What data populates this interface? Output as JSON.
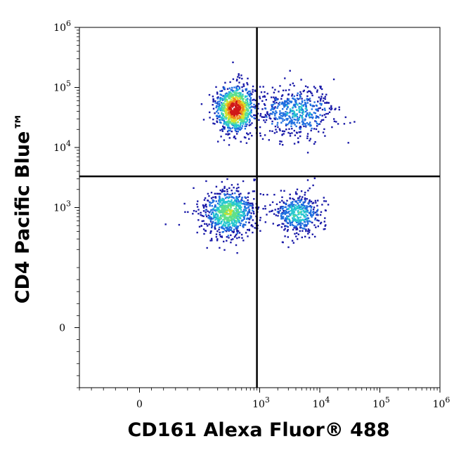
{
  "chart_data": {
    "type": "scatter",
    "subtype": "flow-cytometry-density-dot-plot",
    "title": "",
    "xlabel": "CD161 Alexa Fluor® 488",
    "ylabel": "CD4 Pacific Blue™",
    "x_scale": "biexponential",
    "y_scale": "biexponential",
    "xlim": [
      -100,
      1000000
    ],
    "ylim": [
      -100,
      1000000
    ],
    "x_ticks": [
      {
        "value": 0,
        "base": "0",
        "exp": ""
      },
      {
        "value": 1000,
        "base": "10",
        "exp": "3"
      },
      {
        "value": 10000,
        "base": "10",
        "exp": "4"
      },
      {
        "value": 100000,
        "base": "10",
        "exp": "5"
      },
      {
        "value": 1000000,
        "base": "10",
        "exp": "6"
      }
    ],
    "y_ticks": [
      {
        "value": 0,
        "base": "0",
        "exp": ""
      },
      {
        "value": 1000,
        "base": "10",
        "exp": "3"
      },
      {
        "value": 10000,
        "base": "10",
        "exp": "4"
      },
      {
        "value": 100000,
        "base": "10",
        "exp": "5"
      },
      {
        "value": 1000000,
        "base": "10",
        "exp": "6"
      }
    ],
    "quadrant_gates": {
      "x": 900,
      "y": 3300
    },
    "color_scale": [
      "#1a1aa8",
      "#1f6fe0",
      "#27c7d0",
      "#5fe08a",
      "#d8e22a",
      "#f08a1a",
      "#d01818"
    ],
    "populations": [
      {
        "quadrant": "upper-left",
        "center": [
          380,
          45000
        ],
        "spread_decades": [
          0.16,
          0.2
        ],
        "events": 900,
        "relative_density": 1.0
      },
      {
        "quadrant": "upper-right",
        "center": [
          4000,
          40000
        ],
        "spread_decades": [
          0.33,
          0.22
        ],
        "events": 520,
        "relative_density": 0.3
      },
      {
        "quadrant": "lower-left",
        "center": [
          300,
          850
        ],
        "spread_decades": [
          0.22,
          0.2
        ],
        "events": 820,
        "relative_density": 0.55
      },
      {
        "quadrant": "lower-right",
        "center": [
          4200,
          800
        ],
        "spread_decades": [
          0.2,
          0.16
        ],
        "events": 420,
        "relative_density": 0.4
      }
    ],
    "grid": false,
    "legend": "none"
  }
}
